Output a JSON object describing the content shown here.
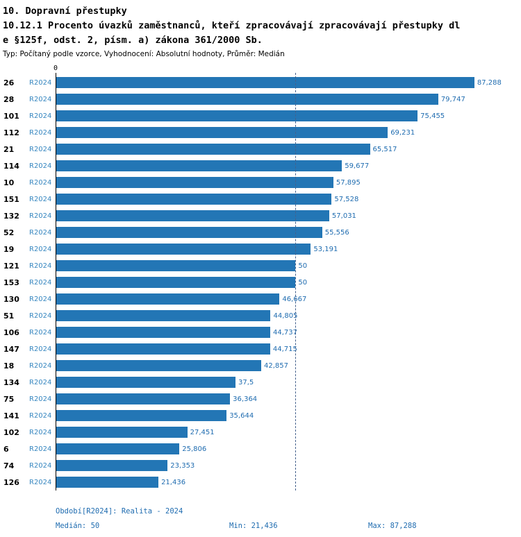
{
  "header": {
    "title": "10. Dopravní přestupky",
    "subtitle_line1": "10.12.1 Procento úvazků zaměstnanců, kteří zpracovávají zpracovávají přestupky dl",
    "subtitle_line2": "e §125f, odst. 2, písm. a) zákona 361/2000 Sb.",
    "meta": "Typ: Počítaný podle vzorce, Vyhodnocení: Absolutní hodnoty, Průměr: Medián"
  },
  "chart_data": {
    "type": "bar",
    "orientation": "horizontal",
    "title": "10.12.1 Procento úvazků zaměstnanců, kteří zpracovávají zpracovávají přestupky dle §125f, odst. 2, písm. a) zákona 361/2000 Sb.",
    "xlabel": "",
    "ylabel": "",
    "axis_zero_label": "0",
    "xlim": [
      0,
      97
    ],
    "grid": false,
    "legend_position": "none",
    "series_label": "R2024",
    "categories": [
      "26",
      "28",
      "101",
      "112",
      "21",
      "114",
      "10",
      "151",
      "132",
      "52",
      "19",
      "121",
      "153",
      "130",
      "51",
      "106",
      "147",
      "18",
      "134",
      "75",
      "141",
      "102",
      "6",
      "74",
      "126"
    ],
    "values": [
      87.288,
      79.747,
      75.455,
      69.231,
      65.517,
      59.677,
      57.895,
      57.528,
      57.031,
      55.556,
      53.191,
      50,
      50,
      46.667,
      44.805,
      44.737,
      44.715,
      42.857,
      37.5,
      36.364,
      35.644,
      27.451,
      25.806,
      23.353,
      21.436
    ],
    "value_labels": [
      "87,288",
      "79,747",
      "75,455",
      "69,231",
      "65,517",
      "59,677",
      "57,895",
      "57,528",
      "57,031",
      "55,556",
      "53,191",
      "50",
      "50",
      "46,667",
      "44,805",
      "44,737",
      "44,715",
      "42,857",
      "37,5",
      "36,364",
      "35,644",
      "27,451",
      "25,806",
      "23,353",
      "21,436"
    ],
    "median_line": 50,
    "bar_color": "#2376b5",
    "value_color": "#1f6cb0",
    "period_color": "#3787c0",
    "median_line_color": "#44618c"
  },
  "footer": {
    "period": "Období[R2024]: Realita - 2024",
    "median": "Medián: 50",
    "min": "Min: 21,436",
    "max": "Max: 87,288"
  }
}
